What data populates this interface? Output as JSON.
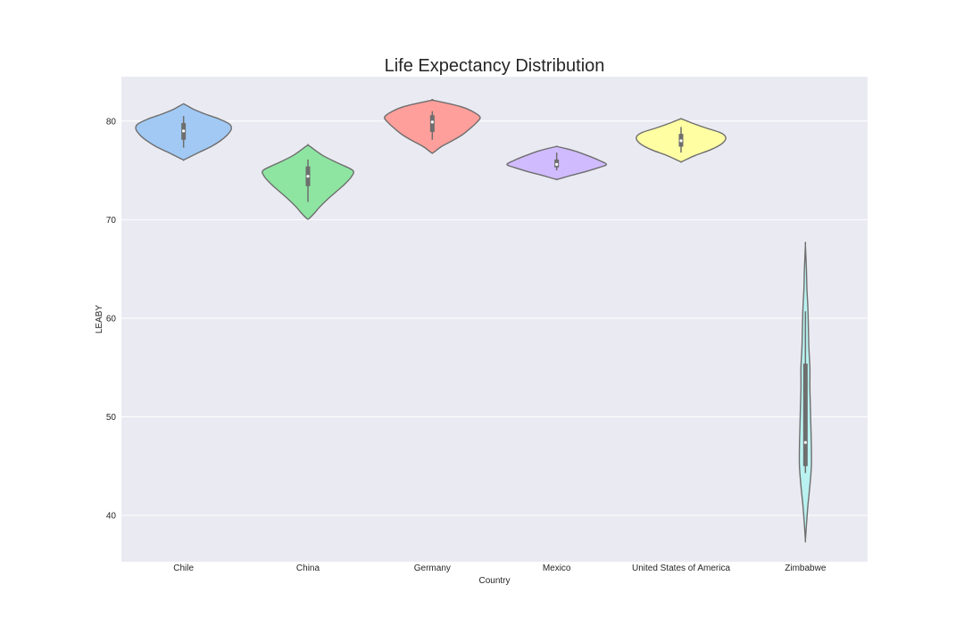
{
  "chart_data": {
    "type": "violin",
    "title": "Life Expectancy Distribution",
    "xlabel": "Country",
    "ylabel": "LEABY",
    "ylim": [
      35.3,
      84.5
    ],
    "yticks": [
      40,
      50,
      60,
      70,
      80
    ],
    "grid": true,
    "legend": "none",
    "categories": [
      "Chile",
      "China",
      "Germany",
      "Mexico",
      "United States of America",
      "Zimbabwe"
    ],
    "colors": [
      "#a1c9f4",
      "#8de5a1",
      "#ff9f9b",
      "#d0bbff",
      "#fffea3",
      "#b9f2f0"
    ],
    "series": [
      {
        "name": "Chile",
        "density": [
          [
            76.1,
            0.02
          ],
          [
            76.8,
            0.3
          ],
          [
            77.4,
            0.55
          ],
          [
            78.0,
            0.74
          ],
          [
            78.6,
            0.88
          ],
          [
            79.2,
            0.96
          ],
          [
            79.7,
            0.92
          ],
          [
            80.2,
            0.72
          ],
          [
            80.7,
            0.44
          ],
          [
            81.2,
            0.2
          ],
          [
            81.7,
            0.02
          ]
        ],
        "whisker": [
          77.3,
          80.5
        ],
        "q1": 78.1,
        "q3": 79.8,
        "median": 79.0
      },
      {
        "name": "China",
        "density": [
          [
            70.1,
            0.02
          ],
          [
            70.6,
            0.12
          ],
          [
            71.3,
            0.24
          ],
          [
            72.0,
            0.38
          ],
          [
            72.8,
            0.56
          ],
          [
            73.6,
            0.74
          ],
          [
            74.4,
            0.88
          ],
          [
            75.0,
            0.9
          ],
          [
            75.7,
            0.62
          ],
          [
            76.5,
            0.3
          ],
          [
            77.5,
            0.02
          ]
        ],
        "whisker": [
          71.8,
          76.1
        ],
        "q1": 73.4,
        "q3": 75.4,
        "median": 74.4
      },
      {
        "name": "Germany",
        "density": [
          [
            76.8,
            0.02
          ],
          [
            77.4,
            0.18
          ],
          [
            78.0,
            0.4
          ],
          [
            78.6,
            0.6
          ],
          [
            79.2,
            0.75
          ],
          [
            79.8,
            0.88
          ],
          [
            80.4,
            0.96
          ],
          [
            81.0,
            0.8
          ],
          [
            81.5,
            0.55
          ],
          [
            82.1,
            0.02
          ]
        ],
        "whisker": [
          78.1,
          81.0
        ],
        "q1": 78.9,
        "q3": 80.6,
        "median": 79.9
      },
      {
        "name": "Mexico",
        "density": [
          [
            74.1,
            0.02
          ],
          [
            74.5,
            0.3
          ],
          [
            74.9,
            0.6
          ],
          [
            75.3,
            0.86
          ],
          [
            75.6,
            1.0
          ],
          [
            76.0,
            0.86
          ],
          [
            76.5,
            0.62
          ],
          [
            77.0,
            0.34
          ],
          [
            77.4,
            0.02
          ]
        ],
        "whisker": [
          75.0,
          76.8
        ],
        "q1": 75.3,
        "q3": 76.1,
        "median": 75.6
      },
      {
        "name": "United States of America",
        "density": [
          [
            75.9,
            0.02
          ],
          [
            76.5,
            0.28
          ],
          [
            77.1,
            0.6
          ],
          [
            77.7,
            0.82
          ],
          [
            78.3,
            0.9
          ],
          [
            78.8,
            0.8
          ],
          [
            79.3,
            0.5
          ],
          [
            79.8,
            0.22
          ],
          [
            80.2,
            0.02
          ]
        ],
        "whisker": [
          76.8,
          79.4
        ],
        "q1": 77.4,
        "q3": 78.7,
        "median": 78.0
      },
      {
        "name": "Zimbabwe",
        "density": [
          [
            37.5,
            0.0
          ],
          [
            39.0,
            0.02
          ],
          [
            41.0,
            0.05
          ],
          [
            43.0,
            0.09
          ],
          [
            45.0,
            0.12
          ],
          [
            47.0,
            0.12
          ],
          [
            49.0,
            0.11
          ],
          [
            51.0,
            0.1
          ],
          [
            53.0,
            0.09
          ],
          [
            55.0,
            0.09
          ],
          [
            57.0,
            0.07
          ],
          [
            59.0,
            0.06
          ],
          [
            61.0,
            0.05
          ],
          [
            63.0,
            0.03
          ],
          [
            65.0,
            0.02
          ],
          [
            67.4,
            0.0
          ]
        ],
        "whisker": [
          44.3,
          60.7
        ],
        "q1": 45.0,
        "q3": 55.4,
        "median": 47.4
      }
    ]
  }
}
